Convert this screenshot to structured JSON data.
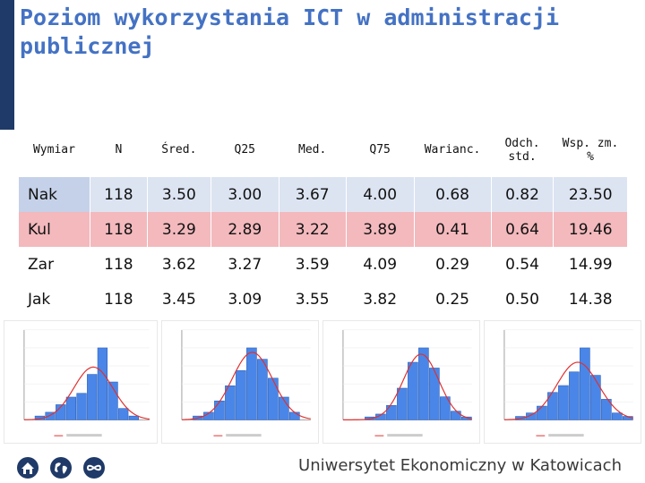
{
  "slide": {
    "title": "Poziom wykorzystania ICT w administracji publicznej"
  },
  "table": {
    "headers": [
      "Wymiar",
      "N",
      "Śred.",
      "Q25",
      "Med.",
      "Q75",
      "Warianc.",
      "Odch. std.",
      "Wsp. zm. %"
    ],
    "rows": [
      {
        "label": "Nak",
        "values": [
          "118",
          "3.50",
          "3.00",
          "3.67",
          "4.00",
          "0.68",
          "0.82",
          "23.50"
        ]
      },
      {
        "label": "Kul",
        "values": [
          "118",
          "3.29",
          "2.89",
          "3.22",
          "3.89",
          "0.41",
          "0.64",
          "19.46"
        ]
      },
      {
        "label": "Zar",
        "values": [
          "118",
          "3.62",
          "3.27",
          "3.59",
          "4.09",
          "0.29",
          "0.54",
          "14.99"
        ]
      },
      {
        "label": "Jak",
        "values": [
          "118",
          "3.45",
          "3.09",
          "3.55",
          "3.82",
          "0.25",
          "0.50",
          "14.38"
        ]
      }
    ]
  },
  "chart_data": [
    {
      "type": "bar",
      "values": [
        0,
        1,
        2,
        4,
        6,
        7,
        12,
        19,
        10,
        3,
        1,
        0
      ]
    },
    {
      "type": "bar",
      "values": [
        0,
        1,
        2,
        5,
        9,
        13,
        19,
        16,
        11,
        6,
        2,
        0
      ]
    },
    {
      "type": "bar",
      "values": [
        0,
        0,
        1,
        2,
        5,
        11,
        20,
        25,
        18,
        8,
        3,
        1
      ]
    },
    {
      "type": "bar",
      "values": [
        0,
        1,
        2,
        4,
        8,
        10,
        14,
        21,
        13,
        6,
        2,
        1
      ]
    }
  ],
  "footer": {
    "university": "Uniwersytet Ekonomiczny w Katowicach",
    "icons": [
      "home-icon",
      "globe-icon",
      "infinity-icon"
    ]
  },
  "colors": {
    "title": "#4472c4",
    "kul_highlight": "#f3b9bd",
    "nak_highlight": "#dce4f2",
    "bar": "#4a86e8",
    "curve": "#e03030"
  }
}
